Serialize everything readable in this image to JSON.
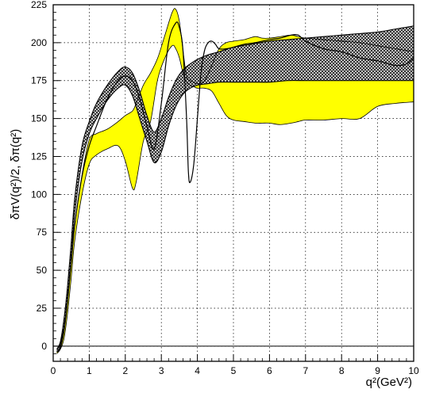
{
  "chart_data": {
    "type": "area",
    "title": "",
    "xlabel": "q²(GeV²)",
    "ylabel": "δπV(q²)/2, δπ(q²)",
    "xlim": [
      0,
      10
    ],
    "ylim": [
      -10,
      225
    ],
    "grid": true,
    "x_ticks": [
      0,
      1,
      2,
      3,
      4,
      5,
      6,
      7,
      8,
      9,
      10
    ],
    "x_tick_labels": [
      "0",
      "1",
      "2",
      "3",
      "4",
      "5",
      "6",
      "7",
      "8",
      "9",
      "10"
    ],
    "y_ticks": [
      0,
      25,
      50,
      75,
      100,
      125,
      150,
      175,
      200,
      225
    ],
    "y_tick_labels": [
      "0",
      "25",
      "50",
      "75",
      "100",
      "125",
      "150",
      "175",
      "200",
      "225"
    ],
    "zero_line": 0,
    "colors": {
      "yellow_band": "#ffff00",
      "grey_band": "#8c8c8c",
      "line": "#000000",
      "frame": "#000000"
    },
    "series": [
      {
        "color": "yellow",
        "style": "band",
        "x": [
          0.1,
          0.2,
          0.3,
          0.4,
          0.5,
          0.6,
          0.8,
          1.0,
          1.2,
          1.5,
          1.8,
          2.0,
          2.2,
          2.3,
          2.5,
          2.7,
          2.9,
          3.1,
          3.3,
          3.4,
          3.5,
          3.6,
          3.7,
          3.8,
          3.9,
          4.0,
          4.2,
          4.4,
          4.6,
          4.8,
          5.0,
          5.3,
          5.6,
          5.8,
          6.0,
          6.3,
          6.6,
          6.8,
          7.0,
          7.5,
          8.0,
          8.5,
          9.0,
          9.5,
          10.0
        ],
        "upper": [
          -3,
          2,
          12,
          30,
          55,
          80,
          113,
          136,
          140,
          143,
          148,
          152,
          155,
          160,
          172,
          180,
          190,
          205,
          220,
          222,
          214,
          195,
          178,
          175,
          174,
          173,
          175,
          185,
          196,
          200,
          201,
          202,
          204,
          203,
          203,
          204,
          205,
          204,
          203,
          202,
          201,
          200,
          198,
          196,
          194
        ],
        "lower": [
          -5,
          -2,
          5,
          22,
          45,
          70,
          100,
          120,
          126,
          130,
          132,
          122,
          104,
          108,
          135,
          148,
          176,
          190,
          198,
          196,
          190,
          180,
          174,
          172,
          171,
          170,
          170,
          168,
          160,
          152,
          149,
          148,
          147,
          147,
          147,
          146,
          147,
          148,
          149,
          149,
          150,
          150,
          158,
          160,
          161
        ]
      },
      {
        "color": "grey",
        "style": "band",
        "x": [
          0.1,
          0.2,
          0.3,
          0.4,
          0.5,
          0.6,
          0.8,
          1.0,
          1.2,
          1.5,
          1.8,
          2.0,
          2.2,
          2.4,
          2.6,
          2.8,
          3.0,
          3.2,
          3.4,
          3.6,
          3.8,
          4.0,
          4.3,
          4.6,
          5.0,
          5.5,
          6.0,
          6.5,
          7.0,
          7.5,
          8.0,
          8.5,
          9.0,
          9.5,
          10.0
        ],
        "upper": [
          -2,
          3,
          18,
          40,
          68,
          98,
          132,
          148,
          160,
          172,
          181,
          184,
          180,
          168,
          152,
          141,
          150,
          164,
          175,
          182,
          186,
          189,
          192,
          194,
          197,
          199,
          201,
          202,
          203,
          204,
          205,
          206,
          207,
          209,
          211
        ],
        "lower": [
          -4,
          0,
          12,
          32,
          58,
          88,
          122,
          140,
          150,
          162,
          170,
          172,
          165,
          150,
          135,
          121,
          128,
          145,
          158,
          166,
          170,
          172,
          173,
          174,
          174,
          174,
          174,
          175,
          175,
          175,
          175,
          175,
          175,
          175,
          175
        ]
      },
      {
        "color": "black",
        "style": "line",
        "x": [
          0.1,
          0.2,
          0.3,
          0.4,
          0.5,
          0.6,
          0.8,
          1.0,
          1.2,
          1.5,
          1.8,
          2.0,
          2.2,
          2.4,
          2.6,
          2.8,
          3.0,
          3.2,
          3.4,
          3.5,
          3.6,
          3.7,
          3.75,
          3.8,
          3.9,
          4.0,
          4.1,
          4.2,
          4.3,
          4.4,
          4.5,
          4.6,
          4.8,
          5.0,
          5.3,
          5.6,
          6.0,
          6.3,
          6.6,
          6.8,
          7.0,
          7.5,
          8.0,
          8.5,
          9.0,
          9.5,
          9.8,
          10.0
        ],
        "y": [
          -4,
          -1,
          10,
          30,
          55,
          80,
          112,
          132,
          145,
          163,
          175,
          178,
          175,
          163,
          145,
          130,
          160,
          200,
          213,
          210,
          195,
          150,
          115,
          108,
          120,
          150,
          180,
          195,
          200,
          201,
          199,
          196,
          196,
          197,
          199,
          200,
          202,
          203,
          205,
          205,
          201,
          196,
          194,
          190,
          188,
          185,
          186,
          190
        ]
      }
    ]
  }
}
